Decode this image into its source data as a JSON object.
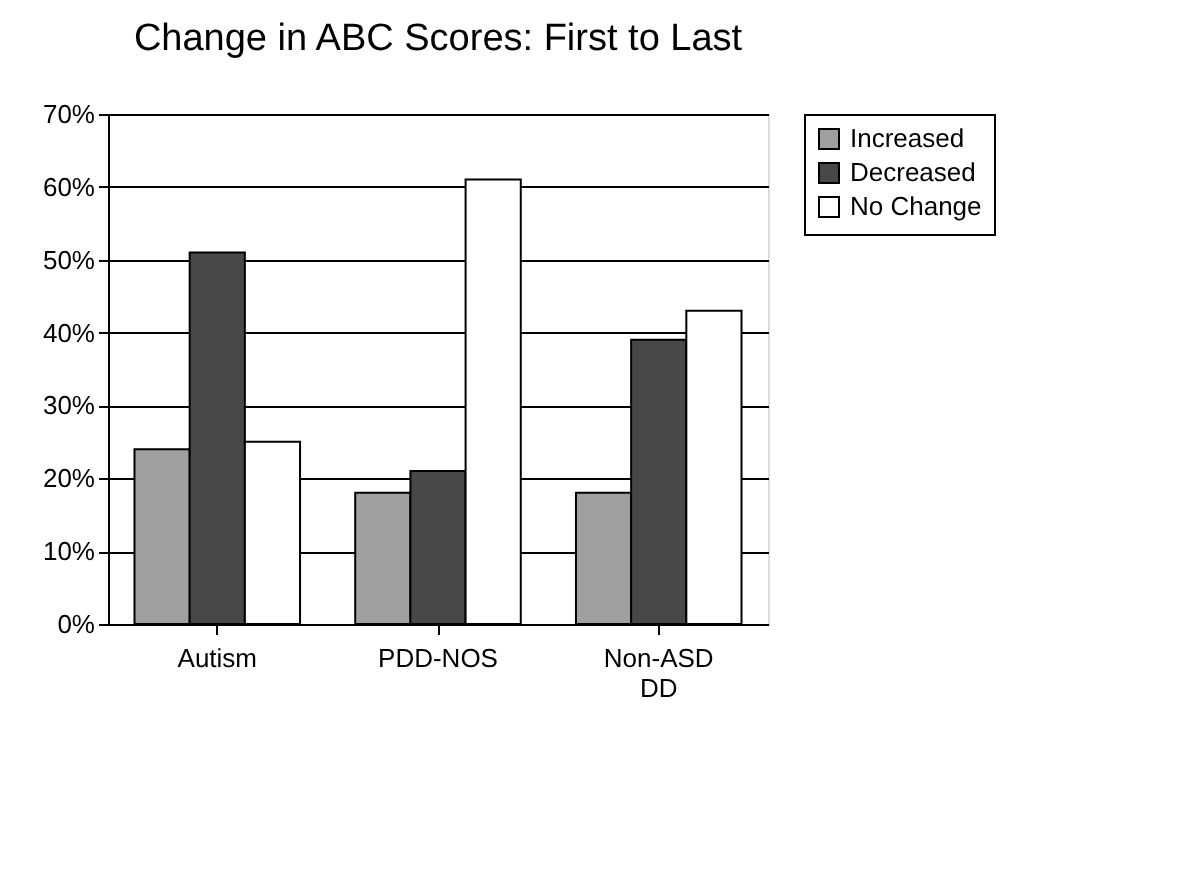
{
  "chart_data": {
    "type": "bar",
    "title": "Change in ABC Scores: First to Last",
    "categories": [
      "Autism",
      "PDD-NOS",
      "Non-ASD DD"
    ],
    "series": [
      {
        "name": "Increased",
        "color": "#a0a0a0",
        "values": [
          24,
          18,
          18
        ]
      },
      {
        "name": "Decreased",
        "color": "#484848",
        "values": [
          51,
          21,
          39
        ]
      },
      {
        "name": "No Change",
        "color": "#ffffff",
        "values": [
          25,
          61,
          43
        ]
      }
    ],
    "ylim": [
      0,
      70
    ],
    "yticks": [
      {
        "value": 0,
        "label": "0%"
      },
      {
        "value": 10,
        "label": "10%"
      },
      {
        "value": 20,
        "label": "20%"
      },
      {
        "value": 30,
        "label": "30%"
      },
      {
        "value": 40,
        "label": "40%"
      },
      {
        "value": 50,
        "label": "50%"
      },
      {
        "value": 60,
        "label": "60%"
      },
      {
        "value": 70,
        "label": "70%"
      }
    ],
    "grid": "y",
    "legend": "right"
  }
}
